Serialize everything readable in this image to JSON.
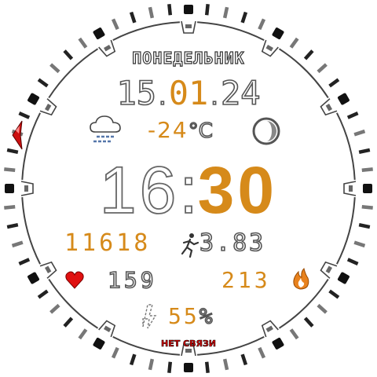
{
  "watchface": {
    "day_of_week": "ПОНЕДЕЛЬНИК",
    "date": {
      "day": "15",
      "month": "01",
      "year": "24",
      "separator": "."
    },
    "weather": {
      "icon": "cloud-fog-icon",
      "temperature": "-24",
      "unit": "°C"
    },
    "moon_phase_icon": "moon-phase-icon",
    "time": {
      "hours": "16",
      "separator": ":",
      "minutes": "30"
    },
    "steps": "11618",
    "distance": "3.83",
    "heart_rate": "159",
    "calories": "213",
    "battery": {
      "value": "55",
      "unit": "%"
    },
    "connection_status": "НЕТ СВЯЗИ",
    "colors": {
      "accent": "#d68a1a",
      "outline": "#555555",
      "alert": "#e00000",
      "heart": "#e01010"
    }
  }
}
